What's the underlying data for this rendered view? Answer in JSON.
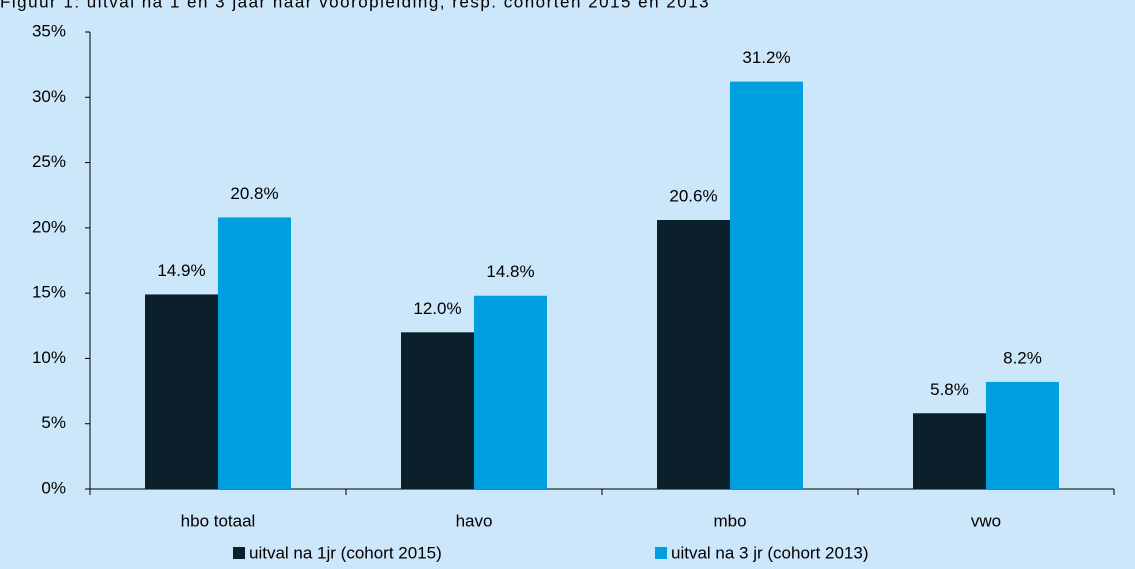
{
  "chart_data": {
    "type": "bar",
    "title": "Figuur 1: uitval na 1 en 3 jaar naar vooropleiding, resp. cohorten 2015 en 2013",
    "categories": [
      "hbo totaal",
      "havo",
      "mbo",
      "vwo"
    ],
    "series": [
      {
        "name": "uitval na 1jr (cohort 2015)",
        "color": "#0b202b",
        "values": [
          14.9,
          12.0,
          20.6,
          5.8
        ],
        "value_labels": [
          "14.9%",
          "12.0%",
          "20.6%",
          "5.8%"
        ]
      },
      {
        "name": "uitval na 3 jr (cohort 2013)",
        "color": "#009fe0",
        "values": [
          20.8,
          14.8,
          31.2,
          8.2
        ],
        "value_labels": [
          "20.8%",
          "14.8%",
          "31.2%",
          "8.2%"
        ]
      }
    ],
    "ylim": [
      0,
      35
    ],
    "yticks": [
      {
        "value": 0,
        "label": "0%"
      },
      {
        "value": 5,
        "label": "5%"
      },
      {
        "value": 10,
        "label": "10%"
      },
      {
        "value": 15,
        "label": "15%"
      },
      {
        "value": 20,
        "label": "20%"
      },
      {
        "value": 25,
        "label": "25%"
      },
      {
        "value": 30,
        "label": "30%"
      },
      {
        "value": 35,
        "label": "35%"
      }
    ],
    "legend": "bottom"
  }
}
